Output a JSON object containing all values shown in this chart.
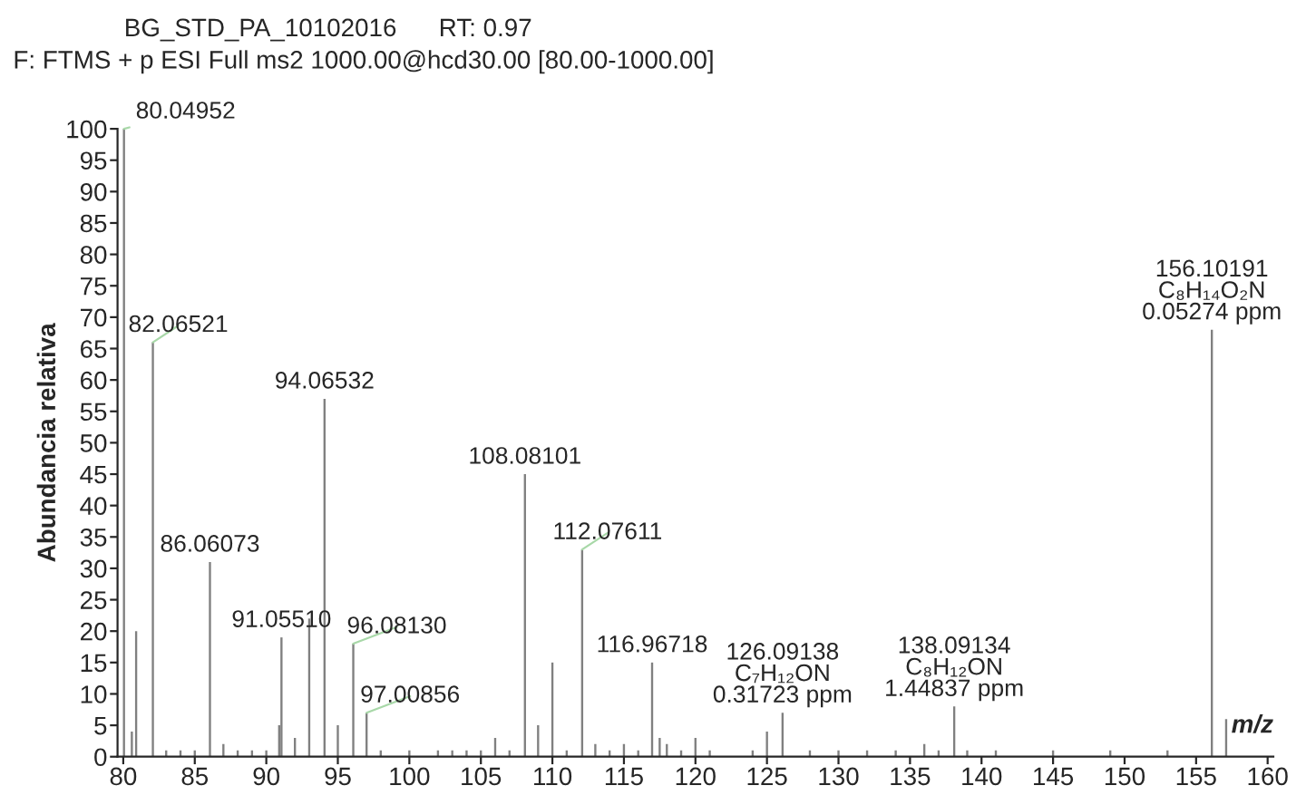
{
  "chart_data": {
    "type": "bar",
    "title": "BG_STD_PA_10102016      RT: 0.97",
    "subtitle": "F: FTMS + p ESI Full ms2 1000.00@hcd30.00 [80.00-1000.00]",
    "xlabel": "m/z",
    "ylabel": "Abundancia relativa",
    "x": [
      80.05,
      80.6,
      80.9,
      82.07,
      83,
      84,
      85,
      86.06,
      87,
      88,
      89,
      90,
      90.9,
      91.06,
      92,
      93,
      94.07,
      95,
      96.08,
      97.01,
      98,
      100,
      102,
      103,
      104,
      105,
      106,
      107,
      108.08,
      109,
      110,
      111,
      112.08,
      113,
      114,
      115,
      116,
      116.97,
      117.5,
      118,
      119,
      120,
      121,
      124,
      125,
      126.09,
      128,
      130,
      132,
      134,
      136,
      137,
      138.09,
      139,
      141,
      145,
      149,
      153,
      156.1,
      157.1
    ],
    "values": [
      100,
      4,
      20,
      66,
      1,
      1,
      1,
      31,
      2,
      1,
      1,
      1,
      5,
      19,
      3,
      22,
      57,
      5,
      18,
      7,
      1,
      1,
      1,
      1,
      1,
      1,
      3,
      1,
      45,
      5,
      15,
      1,
      33,
      2,
      1,
      2,
      1,
      15,
      3,
      2,
      1,
      3,
      1,
      1,
      4,
      7,
      1,
      1,
      1,
      1,
      2,
      1,
      8,
      1,
      1,
      1,
      1,
      1,
      68,
      6
    ],
    "color": "#808080",
    "xlim": [
      79.6,
      160.4
    ],
    "xticks": [
      80,
      85,
      90,
      95,
      100,
      105,
      110,
      115,
      120,
      125,
      130,
      135,
      140,
      145,
      150,
      155,
      160
    ],
    "ylim": [
      0,
      100
    ],
    "yticks": [
      0,
      5,
      10,
      15,
      20,
      25,
      30,
      35,
      40,
      45,
      50,
      55,
      60,
      65,
      70,
      75,
      80,
      85,
      90,
      95,
      100
    ],
    "grid": false,
    "legend": false,
    "annotations": [
      {
        "text": "80.04952",
        "x": 80.05,
        "y": 100
      },
      {
        "text": "82.06521",
        "x": 82.07,
        "y": 66
      },
      {
        "text": "86.06073",
        "x": 86.06,
        "y": 31
      },
      {
        "text": "91.05510",
        "x": 91.06,
        "y": 19
      },
      {
        "text": "94.06532",
        "x": 94.07,
        "y": 57
      },
      {
        "text": "96.08130",
        "x": 96.08,
        "y": 18
      },
      {
        "text": "97.00856",
        "x": 97.01,
        "y": 7
      },
      {
        "text": "108.08101",
        "x": 108.08,
        "y": 45
      },
      {
        "text": "112.07611",
        "x": 112.08,
        "y": 33
      },
      {
        "text": "116.96718",
        "x": 116.97,
        "y": 15
      },
      {
        "text": "126.09138\nC₇H₁₂ON\n0.31723 ppm",
        "x": 126.09,
        "y": 7
      },
      {
        "text": "138.09134\nC₈H₁₂ON\n1.44837 ppm",
        "x": 138.09,
        "y": 8
      },
      {
        "text": "156.10191\nC₈H₁₄O₂N\n0.05274 ppm",
        "x": 156.1,
        "y": 68
      }
    ]
  }
}
